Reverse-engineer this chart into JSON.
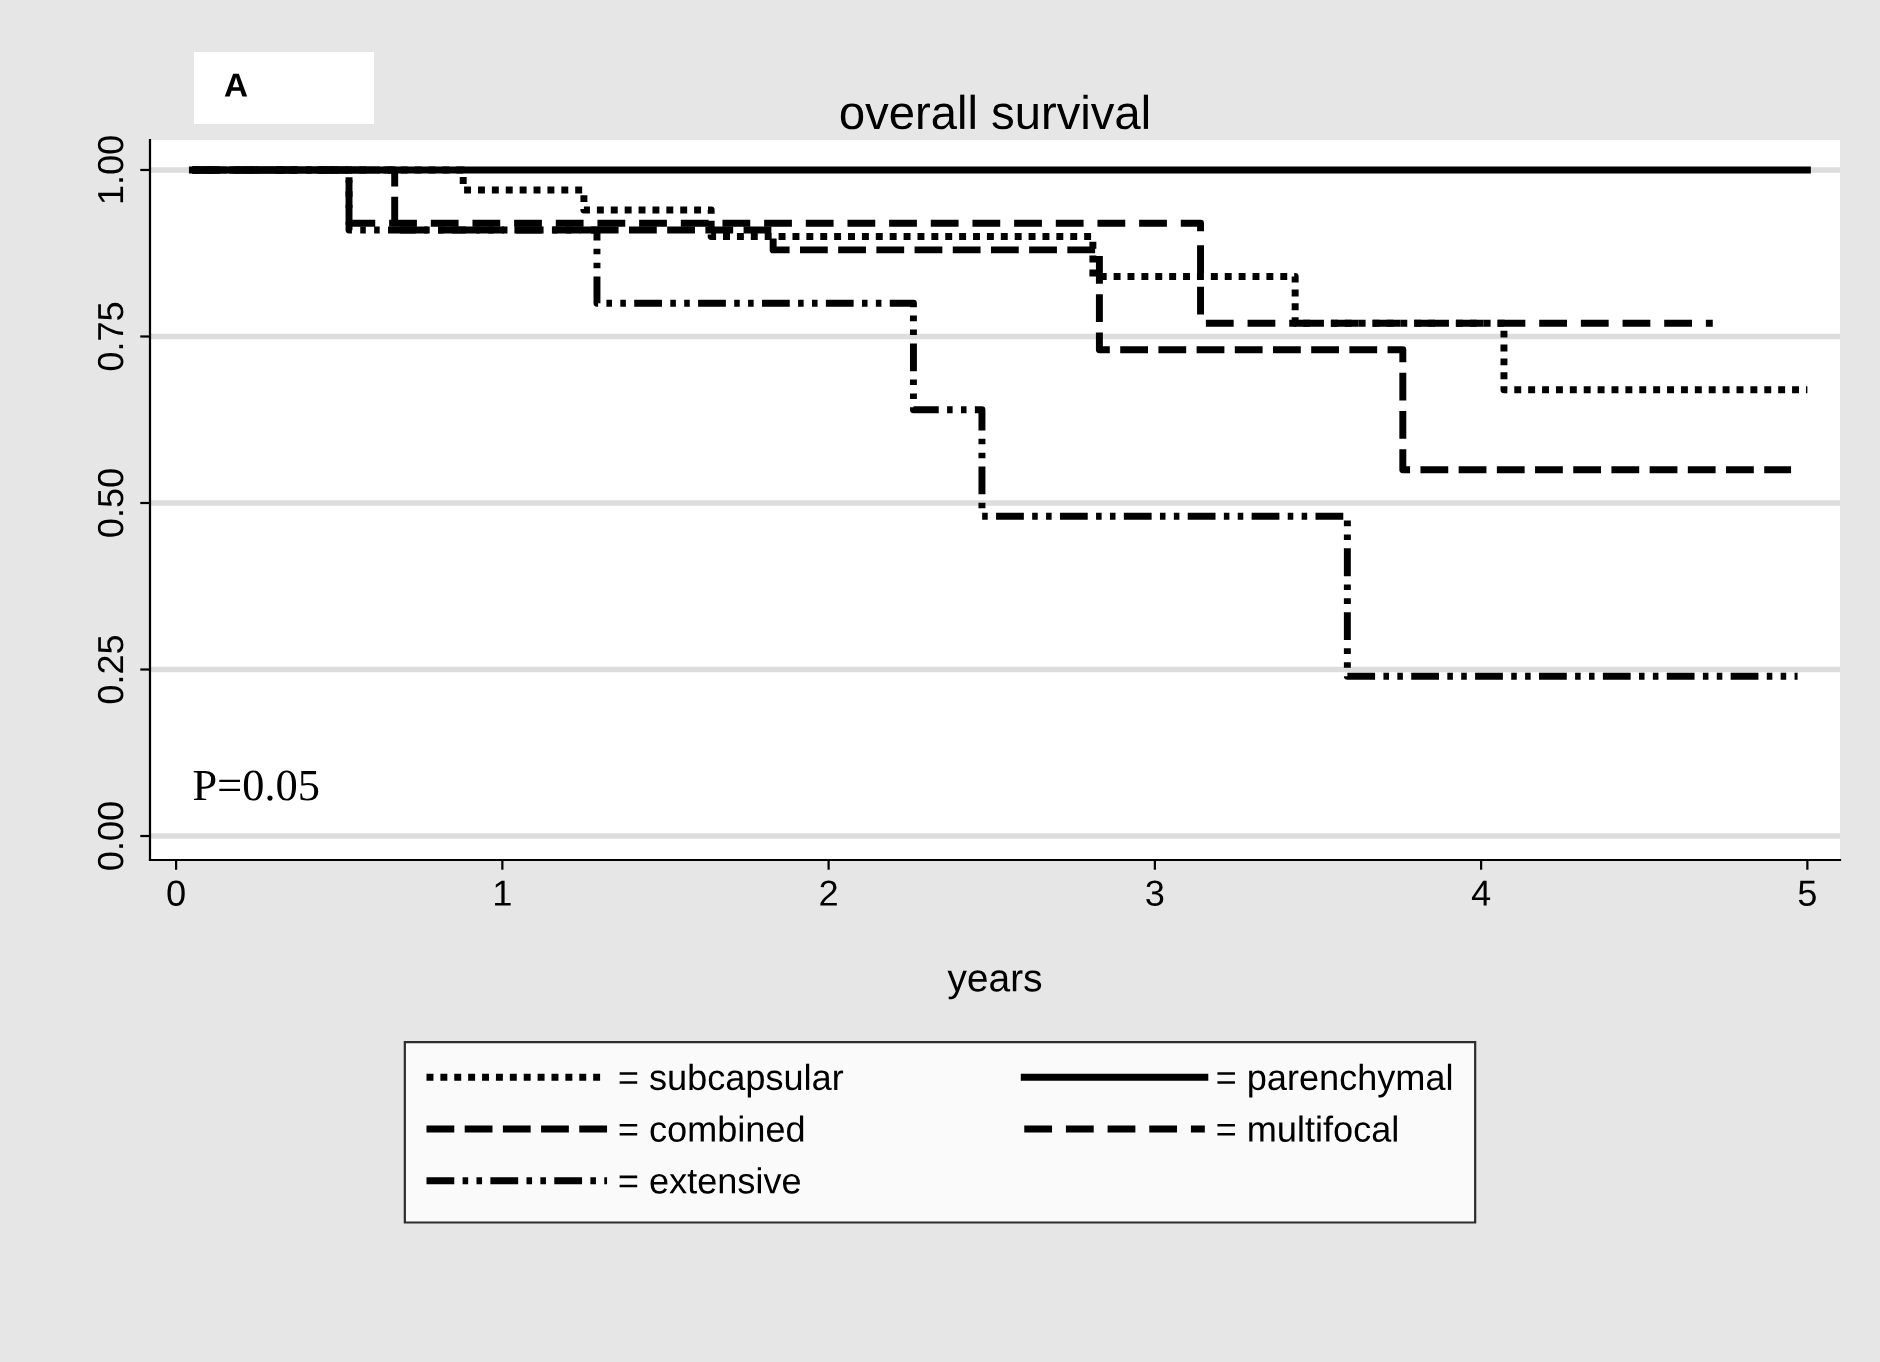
{
  "chart_data": {
    "type": "step",
    "title": "overall survival",
    "xlabel": "years",
    "annotations": [
      "A",
      "P=0.05"
    ],
    "xlim": [
      -0.08,
      5.1
    ],
    "xticks": [
      0,
      1,
      2,
      3,
      4,
      5
    ],
    "ylim": [
      -0.036,
      1.045
    ],
    "yticks": [
      {
        "value": 0,
        "label": "0.00"
      },
      {
        "value": 0.25,
        "label": "0.25"
      },
      {
        "value": 0.5,
        "label": "0.50"
      },
      {
        "value": 0.75,
        "label": "0.75"
      },
      {
        "value": 1,
        "label": "1.00"
      }
    ],
    "grid": "y",
    "legend": "bottom",
    "series": [
      {
        "name": "= subcapsular",
        "color": "#000000",
        "line_style": "dotted",
        "x": [
          0.05,
          0.88,
          1.25,
          1.64,
          2.81,
          3.43,
          4.07,
          5.0
        ],
        "values": [
          1.0,
          0.97,
          0.94,
          0.9,
          0.84,
          0.77,
          0.67,
          0.67
        ]
      },
      {
        "name": "= parenchymal",
        "color": "#000000",
        "line_style": "solid",
        "x": [
          0.05,
          5.0
        ],
        "values": [
          1.0,
          1.0
        ]
      },
      {
        "name": "= combined",
        "color": "#000000",
        "line_style": "longdash",
        "x": [
          0.05,
          0.67,
          1.83,
          2.83,
          3.76,
          4.95
        ],
        "values": [
          1.0,
          0.91,
          0.88,
          0.73,
          0.55,
          0.55
        ]
      },
      {
        "name": "= multifocal",
        "color": "#000000",
        "line_style": "dashed",
        "x": [
          0.05,
          0.53,
          3.14,
          4.71
        ],
        "values": [
          1.0,
          0.92,
          0.77,
          0.77
        ]
      },
      {
        "name": "= extensive",
        "color": "#000000",
        "line_style": "dashdot",
        "x": [
          0.05,
          0.53,
          1.29,
          2.26,
          2.47,
          3.59,
          4.97
        ],
        "values": [
          1.0,
          0.91,
          0.8,
          0.64,
          0.48,
          0.24,
          0.24
        ]
      }
    ]
  }
}
